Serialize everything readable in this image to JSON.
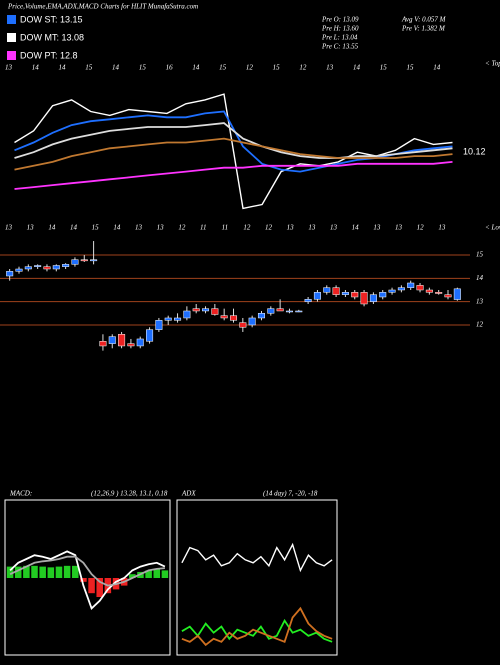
{
  "header": {
    "title": "Price,Volume,EMA,ADX,MACD Charts for HLIT MunafaSutra.com",
    "stats": [
      "Pre O: 13.09",
      "Pre H: 13.60",
      "Pre L: 13.04",
      "Pre C: 13.55",
      "Avg V: 0.057 M",
      "Pre V: 1.382 M"
    ]
  },
  "legend": [
    {
      "label": "DOW ST: 13.15",
      "color": "#1e6fff"
    },
    {
      "label": "DOW MT: 13.08",
      "color": "#ffffff"
    },
    {
      "label": "DOW PT: 12.8",
      "color": "#ff33ff"
    }
  ],
  "chart_data": [
    {
      "type": "line",
      "annotations": [
        "< Tops",
        "< Lows",
        "10.12"
      ],
      "top_labels": [
        "13",
        "14",
        "14",
        "15",
        "14",
        "15",
        "16",
        "14",
        "15",
        "12",
        "15",
        "12",
        "13",
        "14",
        "15",
        "15",
        "14"
      ],
      "bottom_labels": [
        "13",
        "13",
        "14",
        "14",
        "15",
        "14",
        "13",
        "13",
        "12",
        "11",
        "11",
        "12",
        "12",
        "13",
        "13",
        "13",
        "14",
        "13",
        "13",
        "12",
        "13"
      ],
      "ylim": [
        8,
        16
      ],
      "series": [
        {
          "color": "#ffffff",
          "values": [
            12.0,
            12.6,
            13.9,
            14.2,
            13.6,
            13.4,
            13.7,
            13.6,
            13.5,
            14.0,
            14.2,
            14.5,
            8.6,
            8.8,
            10.5,
            10.9,
            10.8,
            11.0,
            11.5,
            11.3,
            11.6,
            12.2,
            11.9,
            12.0
          ]
        },
        {
          "color": "#1e6fff",
          "values": [
            11.6,
            12.0,
            12.5,
            12.9,
            13.1,
            13.2,
            13.3,
            13.4,
            13.3,
            13.3,
            13.5,
            13.6,
            11.8,
            10.9,
            10.6,
            10.5,
            10.7,
            10.9,
            11.1,
            11.2,
            11.4,
            11.6,
            11.7,
            11.8
          ]
        },
        {
          "color": "#dddddd",
          "values": [
            11.2,
            11.5,
            11.9,
            12.2,
            12.4,
            12.6,
            12.7,
            12.8,
            12.8,
            12.8,
            12.9,
            13.0,
            12.2,
            11.8,
            11.5,
            11.3,
            11.2,
            11.2,
            11.3,
            11.3,
            11.4,
            11.5,
            11.6,
            11.7
          ]
        },
        {
          "color": "#c07830",
          "values": [
            10.6,
            10.8,
            11.0,
            11.3,
            11.5,
            11.7,
            11.8,
            11.9,
            12.0,
            12.0,
            12.1,
            12.2,
            12.0,
            11.8,
            11.6,
            11.4,
            11.3,
            11.2,
            11.2,
            11.2,
            11.2,
            11.3,
            11.3,
            11.4
          ]
        },
        {
          "color": "#ff33ff",
          "values": [
            9.6,
            9.7,
            9.8,
            9.9,
            10.0,
            10.1,
            10.2,
            10.3,
            10.4,
            10.5,
            10.6,
            10.7,
            10.7,
            10.8,
            10.8,
            10.8,
            10.8,
            10.8,
            10.9,
            10.9,
            10.9,
            10.9,
            10.9,
            11.0
          ]
        }
      ]
    },
    {
      "type": "candlestick",
      "ylim": [
        10,
        16
      ],
      "yticks": [
        15,
        14,
        13,
        12
      ],
      "grid": true,
      "up_color": "#1e6fff",
      "down_color": "#ee2222",
      "open": [
        14.1,
        14.3,
        14.4,
        14.5,
        14.5,
        14.4,
        14.5,
        14.6,
        14.8,
        14.75,
        11.3,
        11.2,
        11.6,
        11.2,
        11.1,
        11.3,
        11.8,
        12.2,
        12.2,
        12.3,
        12.7,
        12.6,
        12.7,
        12.4,
        12.4,
        12.1,
        12.0,
        12.3,
        12.5,
        12.7,
        12.6,
        12.6,
        13.0,
        13.1,
        13.4,
        13.6,
        13.3,
        13.4,
        13.4,
        13.0,
        13.2,
        13.4,
        13.5,
        13.6,
        13.7,
        13.5,
        13.4,
        13.3,
        13.09
      ],
      "high": [
        14.4,
        14.5,
        14.6,
        14.6,
        14.6,
        14.6,
        14.65,
        14.9,
        15.0,
        15.6,
        11.6,
        11.6,
        11.7,
        11.4,
        11.5,
        11.9,
        12.3,
        12.4,
        12.5,
        12.8,
        12.9,
        12.8,
        12.9,
        12.7,
        12.7,
        12.3,
        12.4,
        12.6,
        12.8,
        13.1,
        12.7,
        12.65,
        13.2,
        13.5,
        13.7,
        13.7,
        13.5,
        13.5,
        13.5,
        13.4,
        13.5,
        13.6,
        13.7,
        13.9,
        13.8,
        13.6,
        13.5,
        13.5,
        13.6
      ],
      "low": [
        13.9,
        14.2,
        14.3,
        14.4,
        14.3,
        14.3,
        14.4,
        14.5,
        14.7,
        14.6,
        10.9,
        11.0,
        11.0,
        11.0,
        11.0,
        11.2,
        11.7,
        12.0,
        12.1,
        12.2,
        12.5,
        12.5,
        12.4,
        12.2,
        12.1,
        11.7,
        11.9,
        12.2,
        12.4,
        12.6,
        12.5,
        12.55,
        12.9,
        13.0,
        13.3,
        13.2,
        13.2,
        13.1,
        12.8,
        12.9,
        13.1,
        13.3,
        13.4,
        13.5,
        13.4,
        13.3,
        13.3,
        13.1,
        13.04
      ],
      "close": [
        14.3,
        14.4,
        14.5,
        14.55,
        14.4,
        14.55,
        14.6,
        14.8,
        14.75,
        14.8,
        11.1,
        11.5,
        11.1,
        11.1,
        11.4,
        11.8,
        12.2,
        12.3,
        12.3,
        12.6,
        12.6,
        12.7,
        12.45,
        12.3,
        12.2,
        11.9,
        12.3,
        12.5,
        12.7,
        12.6,
        12.6,
        12.6,
        13.1,
        13.4,
        13.6,
        13.3,
        13.4,
        13.2,
        12.9,
        13.3,
        13.4,
        13.5,
        13.6,
        13.8,
        13.5,
        13.4,
        13.35,
        13.2,
        13.55
      ]
    },
    {
      "type": "macd",
      "label": "MACD:",
      "params": "(12,26,9 ) 13.28, 13.1, 0.18",
      "ylim": [
        -1,
        1
      ],
      "series": [
        {
          "type": "bar",
          "color": "#22cc22",
          "neg_color": "#ee2222",
          "values": [
            0.15,
            0.15,
            0.16,
            0.16,
            0.15,
            0.14,
            0.15,
            0.16,
            0.16,
            -0.05,
            -0.2,
            -0.25,
            -0.2,
            -0.15,
            -0.1,
            0.05,
            0.08,
            0.1,
            0.12,
            0.1
          ]
        },
        {
          "color": "#ffffff",
          "values": [
            0.1,
            0.2,
            0.25,
            0.3,
            0.28,
            0.25,
            0.3,
            0.35,
            0.3,
            -0.1,
            -0.4,
            -0.3,
            -0.15,
            -0.05,
            0.0,
            0.1,
            0.15,
            0.18,
            0.2,
            0.15
          ]
        },
        {
          "color": "#aaaaaa",
          "values": [
            0.05,
            0.1,
            0.15,
            0.2,
            0.22,
            0.23,
            0.25,
            0.28,
            0.28,
            0.2,
            0.05,
            -0.05,
            -0.1,
            -0.08,
            -0.05,
            0.0,
            0.05,
            0.1,
            0.12,
            0.13
          ]
        }
      ]
    },
    {
      "type": "line",
      "label": "ADX",
      "params": "(14 day) 7, -20, -18",
      "ylim": [
        0,
        100
      ],
      "series": [
        {
          "color": "#ffffff",
          "values": [
            60,
            70,
            68,
            62,
            65,
            58,
            60,
            66,
            62,
            60,
            64,
            58,
            70,
            62,
            72,
            55,
            65,
            60,
            58,
            62
          ]
        },
        {
          "color": "#22ee22",
          "values": [
            15,
            18,
            12,
            20,
            14,
            18,
            10,
            16,
            14,
            12,
            18,
            10,
            12,
            22,
            14,
            16,
            12,
            14,
            10,
            8
          ]
        },
        {
          "color": "#d07020",
          "values": [
            10,
            8,
            12,
            6,
            10,
            8,
            14,
            10,
            12,
            16,
            14,
            12,
            10,
            8,
            24,
            30,
            20,
            15,
            12,
            10
          ]
        }
      ]
    }
  ]
}
